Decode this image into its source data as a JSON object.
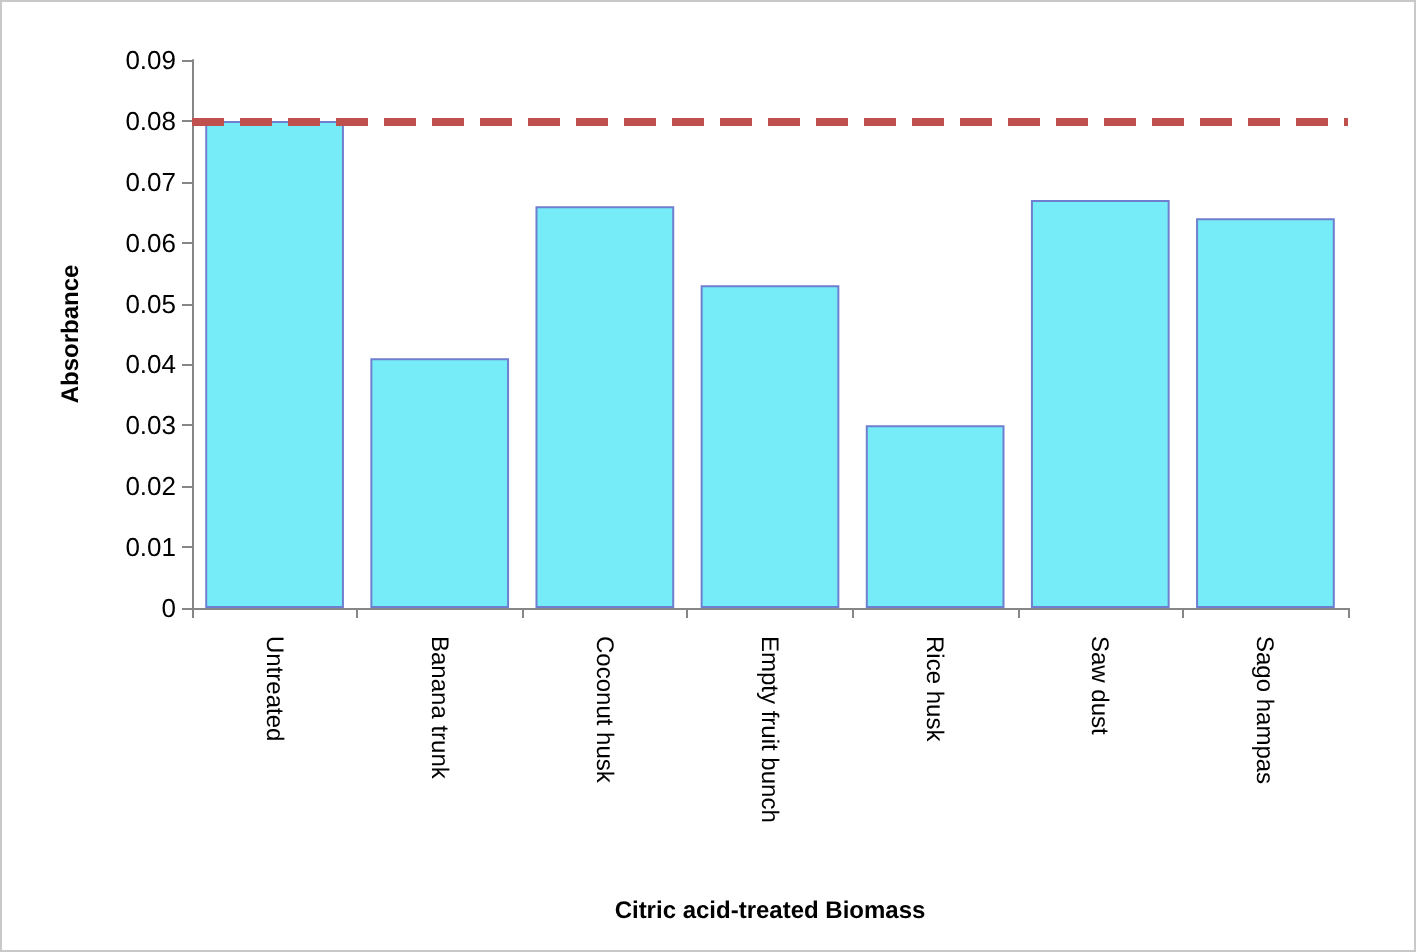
{
  "chart_data": {
    "type": "bar",
    "xlabel": "Citric acid-treated Biomass",
    "ylabel": "Absorbance",
    "categories": [
      "Untreated",
      "Banana trunk",
      "Coconut husk",
      "Empty fruit bunch",
      "Rice husk",
      "Saw dust",
      "Sago hampas"
    ],
    "values": [
      0.08,
      0.041,
      0.066,
      0.053,
      0.03,
      0.067,
      0.064
    ],
    "color": "#76ecf8",
    "ylim": [
      0,
      0.09
    ],
    "yticks": [
      0,
      0.01,
      0.02,
      0.03,
      0.04,
      0.05,
      0.06,
      0.07,
      0.08,
      0.09
    ],
    "grid": false,
    "ref_lines": [
      {
        "axis": "y",
        "value": 0.08,
        "color": "#c0504d",
        "line_style": "dashed"
      }
    ]
  }
}
